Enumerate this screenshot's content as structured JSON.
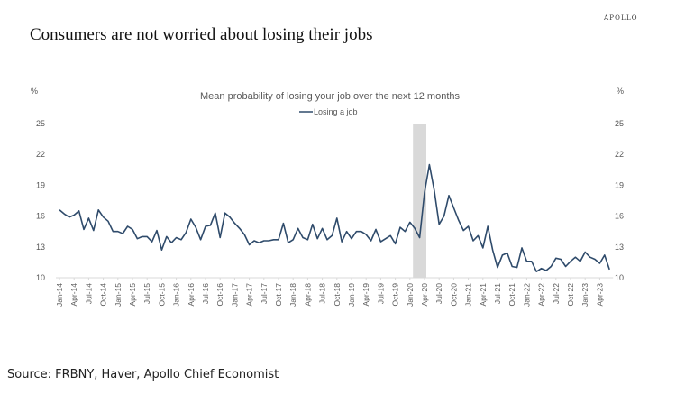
{
  "brand": "APOLLO",
  "headline": "Consumers are not worried about losing their jobs",
  "source": "Source: FRBNY, Haver, Apollo Chief Economist",
  "chart_data": {
    "type": "line",
    "title": "Mean probability of losing your job over the next 12 months",
    "legend": [
      {
        "name": "Losing a job",
        "color": "#2f4b6b"
      }
    ],
    "legend_placement": "top-center",
    "ylabel_left": "%",
    "ylabel_right": "%",
    "ylim": [
      10,
      25
    ],
    "yticks": [
      10,
      13,
      16,
      19,
      22,
      25
    ],
    "grid": false,
    "x_start": "Jan-14",
    "x_frequency": "monthly",
    "xtick_labels": [
      "Jan-14",
      "Apr-14",
      "Jul-14",
      "Oct-14",
      "Jan-15",
      "Apr-15",
      "Jul-15",
      "Oct-15",
      "Jan-16",
      "Apr-16",
      "Jul-16",
      "Oct-16",
      "Jan-17",
      "Apr-17",
      "Jul-17",
      "Oct-17",
      "Jan-18",
      "Apr-18",
      "Jul-18",
      "Oct-18",
      "Jan-19",
      "Apr-19",
      "Jul-19",
      "Oct-19",
      "Jan-20",
      "Apr-20",
      "Jul-20",
      "Oct-20",
      "Jan-21",
      "Apr-21",
      "Jul-21",
      "Oct-21",
      "Jan-22",
      "Apr-22",
      "Jul-22",
      "Oct-22",
      "Jan-23",
      "Apr-23"
    ],
    "shaded_region": {
      "from": "Feb-20",
      "to": "Apr-20",
      "color": "#d9d9d9"
    },
    "series": [
      {
        "name": "Losing a job",
        "values": [
          16.6,
          16.2,
          15.9,
          16.1,
          16.5,
          14.7,
          15.8,
          14.6,
          16.6,
          15.9,
          15.5,
          14.5,
          14.5,
          14.3,
          15.0,
          14.7,
          13.8,
          14.0,
          14.0,
          13.5,
          14.6,
          12.7,
          14.0,
          13.4,
          13.9,
          13.7,
          14.4,
          15.7,
          14.9,
          13.7,
          15.0,
          15.1,
          16.3,
          13.9,
          16.3,
          15.9,
          15.3,
          14.8,
          14.2,
          13.2,
          13.6,
          13.4,
          13.6,
          13.6,
          13.7,
          13.7,
          15.3,
          13.4,
          13.7,
          14.8,
          13.9,
          13.7,
          15.2,
          13.8,
          14.8,
          13.7,
          14.1,
          15.8,
          13.5,
          14.5,
          13.8,
          14.5,
          14.5,
          14.2,
          13.6,
          14.7,
          13.5,
          13.8,
          14.1,
          13.3,
          14.9,
          14.5,
          15.4,
          14.8,
          13.9,
          18.3,
          21.0,
          18.5,
          15.2,
          16.0,
          18.0,
          16.8,
          15.6,
          14.6,
          15.0,
          13.6,
          14.1,
          12.9,
          15.0,
          12.7,
          11.0,
          12.2,
          12.4,
          11.1,
          11.0,
          12.9,
          11.6,
          11.6,
          10.6,
          10.9,
          10.7,
          11.1,
          11.9,
          11.8,
          11.1,
          11.6,
          12.0,
          11.6,
          12.5,
          12.0,
          11.8,
          11.4,
          12.2,
          10.8
        ]
      }
    ]
  }
}
